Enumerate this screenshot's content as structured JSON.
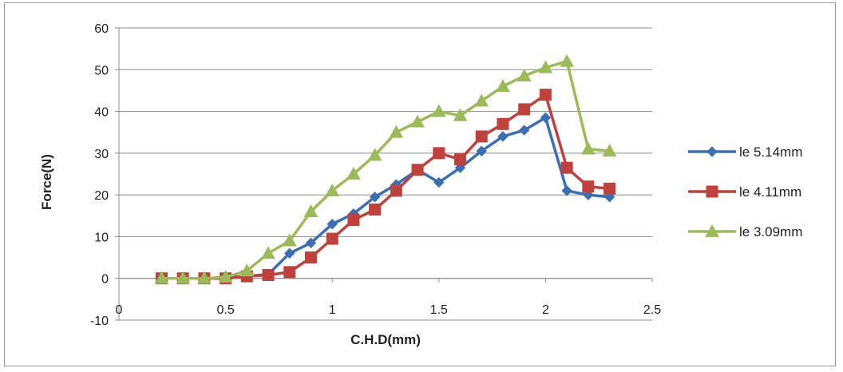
{
  "chart_data": {
    "type": "line",
    "title": "",
    "xlabel": "C.H.D(mm)",
    "ylabel": "Force(N)",
    "xlim": [
      0,
      2.5
    ],
    "ylim": [
      -10,
      60
    ],
    "xticks": [
      "0",
      "0.5",
      "1",
      "1.5",
      "2",
      "2.5"
    ],
    "yticks": [
      "-10",
      "0",
      "10",
      "20",
      "30",
      "40",
      "50",
      "60"
    ],
    "grid": "horizontal",
    "legend_position": "right",
    "x": [
      0.2,
      0.3,
      0.4,
      0.5,
      0.6,
      0.7,
      0.8,
      0.9,
      1.0,
      1.1,
      1.2,
      1.3,
      1.4,
      1.5,
      1.6,
      1.7,
      1.8,
      1.9,
      2.0,
      2.1,
      2.2,
      2.3
    ],
    "series": [
      {
        "name": "le 5.14mm",
        "color": "#3a6fb5",
        "marker": "diamond",
        "values": [
          0,
          0,
          0,
          0.2,
          0.5,
          1,
          6,
          8.5,
          13,
          15.5,
          19.5,
          22.5,
          26,
          23,
          26.5,
          30.5,
          34,
          35.5,
          38.5,
          21,
          20,
          19.5
        ]
      },
      {
        "name": "le 4.11mm",
        "color": "#c0403c",
        "marker": "square",
        "values": [
          0,
          0,
          0,
          0,
          0.5,
          0.8,
          1.5,
          5,
          9.5,
          14,
          16.5,
          21,
          26,
          30,
          28.5,
          34,
          37,
          40.5,
          44,
          26.5,
          22,
          21.5
        ]
      },
      {
        "name": "le 3.09mm",
        "color": "#9bbb59",
        "marker": "triangle",
        "values": [
          0,
          0,
          0,
          0.3,
          1.8,
          6,
          9,
          16,
          21,
          25,
          29.5,
          35,
          37.5,
          40,
          39,
          42.5,
          46,
          48.5,
          50.5,
          52,
          31,
          30.5
        ]
      }
    ]
  }
}
